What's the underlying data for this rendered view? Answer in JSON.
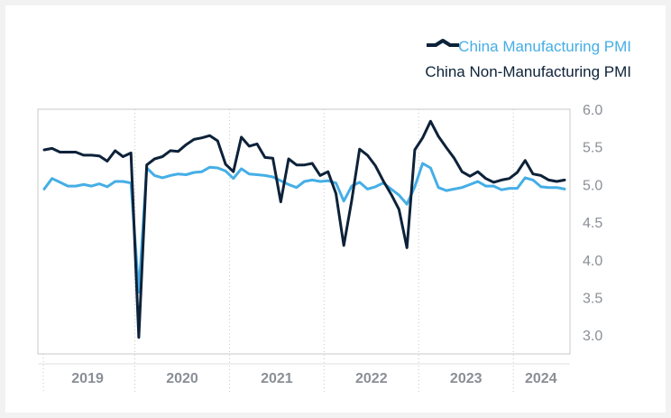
{
  "colors": {
    "manufacturing": "#45aee6",
    "non_manufacturing": "#0d2239",
    "tick_text": "#8a8f96",
    "grid": "#c8c8c8"
  },
  "chart_data": {
    "type": "line",
    "title": "",
    "xlabel": "",
    "ylabel": "",
    "ylim": [
      2.75,
      6.0
    ],
    "yticks": [
      "6.0",
      "5.5",
      "5.0",
      "4.5",
      "4.0",
      "3.5",
      "3.0"
    ],
    "year_labels": [
      "2019",
      "2020",
      "2021",
      "2022",
      "2023",
      "2024"
    ],
    "x_start": "2019-01",
    "x_end": "2024-06",
    "grid": "vertical dotted year separators",
    "legend_position": "top-right",
    "series": [
      {
        "name": "China Manufacturing PMI",
        "color": "#45aee6",
        "values": [
          4.94,
          5.08,
          5.03,
          4.98,
          4.98,
          5.0,
          4.98,
          5.01,
          4.97,
          5.04,
          5.04,
          5.02,
          3.57,
          5.22,
          5.12,
          5.09,
          5.12,
          5.14,
          5.13,
          5.16,
          5.17,
          5.23,
          5.22,
          5.18,
          5.08,
          5.21,
          5.14,
          5.13,
          5.12,
          5.1,
          5.05,
          5.0,
          4.96,
          5.04,
          5.06,
          5.04,
          5.05,
          5.02,
          4.78,
          4.98,
          5.03,
          4.94,
          4.97,
          5.02,
          4.94,
          4.86,
          4.74,
          4.97,
          5.28,
          5.22,
          4.96,
          4.92,
          4.94,
          4.96,
          5.0,
          5.04,
          4.98,
          4.98,
          4.93,
          4.95,
          4.95,
          5.09,
          5.06,
          4.97,
          4.96,
          4.96,
          4.94
        ]
      },
      {
        "name": "China Non-Manufacturing PMI",
        "color": "#0d2239",
        "values": [
          5.46,
          5.48,
          5.43,
          5.43,
          5.43,
          5.39,
          5.39,
          5.38,
          5.31,
          5.45,
          5.37,
          5.42,
          2.97,
          5.26,
          5.34,
          5.37,
          5.45,
          5.44,
          5.53,
          5.6,
          5.62,
          5.65,
          5.58,
          5.27,
          5.17,
          5.63,
          5.51,
          5.54,
          5.36,
          5.35,
          4.77,
          5.34,
          5.26,
          5.26,
          5.28,
          5.12,
          5.17,
          4.88,
          4.19,
          4.79,
          5.47,
          5.39,
          5.25,
          5.05,
          4.87,
          4.67,
          4.16,
          5.46,
          5.62,
          5.84,
          5.64,
          5.49,
          5.35,
          5.17,
          5.11,
          5.17,
          5.08,
          5.03,
          5.06,
          5.08,
          5.16,
          5.32,
          5.14,
          5.12,
          5.06,
          5.04,
          5.06
        ]
      }
    ]
  }
}
